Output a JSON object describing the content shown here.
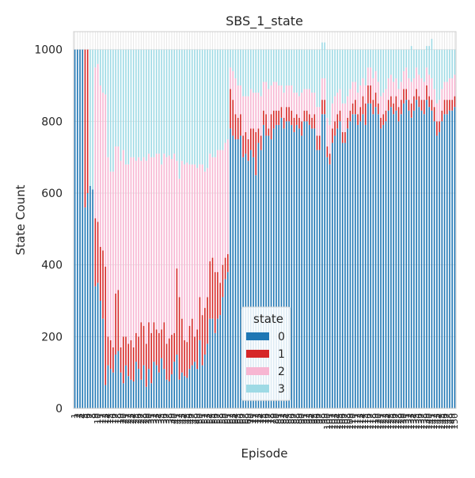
{
  "chart_data": {
    "type": "bar",
    "stacked": true,
    "title": "SBS_1_state",
    "xlabel": "Episode",
    "ylabel": "State Count",
    "ylim": [
      0,
      1050
    ],
    "yticks": [
      0,
      200,
      400,
      600,
      800,
      1000
    ],
    "grid": true,
    "legend": {
      "title": "state",
      "placement": "lower-center"
    },
    "episode_start": 1,
    "episode_end": 150,
    "x_tick_text": [
      "1",
      "2",
      "3",
      "4",
      "5",
      "6",
      "7",
      "8",
      "9",
      "10",
      "11",
      "12",
      "13",
      "14",
      "15",
      "16",
      "17",
      "18",
      "19",
      "20",
      "21",
      "22",
      "23",
      "24",
      "25",
      "26",
      "27",
      "28",
      "29",
      "30",
      "31",
      "32",
      "33",
      "34",
      "35",
      "36",
      "37",
      "38",
      "39",
      "40",
      "41",
      "42",
      "43",
      "44",
      "45",
      "46",
      "47",
      "48",
      "49",
      "50",
      "51",
      "52",
      "53",
      "54",
      "55",
      "56",
      "57",
      "58",
      "59",
      "60",
      "61",
      "62",
      "63",
      "64",
      "65",
      "66",
      "67",
      "68",
      "69",
      "70",
      "71",
      "72",
      "73",
      "74",
      "75",
      "76",
      "77",
      "78",
      "79",
      "80",
      "81",
      "82",
      "83",
      "84",
      "85",
      "86",
      "87",
      "88",
      "89",
      "90",
      "91",
      "92",
      "93",
      "94",
      "95",
      "96",
      "97",
      "98",
      "99",
      "100",
      "101",
      "102",
      "103",
      "104",
      "105",
      "106",
      "107",
      "108",
      "109",
      "110",
      "111",
      "112",
      "113",
      "114",
      "115",
      "116",
      "117",
      "118",
      "119",
      "120",
      "121",
      "122",
      "123",
      "124",
      "125",
      "126",
      "127",
      "128",
      "129",
      "130",
      "131",
      "132",
      "133",
      "134",
      "135",
      "136",
      "137",
      "138",
      "139",
      "140",
      "141",
      "142",
      "143",
      "144",
      "145",
      "146",
      "147",
      "148",
      "149",
      "150"
    ],
    "series": [
      {
        "name": "0",
        "color": "#1f77b4",
        "values": [
          1000,
          1000,
          1000,
          1000,
          560,
          600,
          620,
          610,
          340,
          350,
          300,
          250,
          65,
          120,
          110,
          100,
          150,
          160,
          100,
          70,
          120,
          90,
          80,
          75,
          130,
          110,
          80,
          120,
          60,
          110,
          70,
          130,
          120,
          100,
          140,
          110,
          80,
          75,
          95,
          130,
          150,
          80,
          100,
          90,
          85,
          110,
          120,
          130,
          110,
          190,
          120,
          150,
          180,
          250,
          250,
          210,
          250,
          260,
          310,
          360,
          380,
          780,
          760,
          750,
          750,
          760,
          700,
          710,
          690,
          720,
          700,
          650,
          740,
          720,
          790,
          760,
          760,
          750,
          780,
          790,
          790,
          810,
          780,
          800,
          800,
          790,
          770,
          790,
          780,
          760,
          800,
          800,
          790,
          780,
          780,
          720,
          720,
          820,
          820,
          700,
          680,
          740,
          760,
          780,
          800,
          740,
          740,
          780,
          800,
          820,
          820,
          790,
          800,
          820,
          790,
          850,
          850,
          820,
          840,
          820,
          780,
          790,
          800,
          830,
          840,
          820,
          830,
          800,
          820,
          850,
          860,
          830,
          810,
          830,
          860,
          840,
          830,
          820,
          860,
          840,
          830,
          800,
          760,
          770,
          800,
          820,
          820,
          830,
          830,
          840
        ]
      },
      {
        "name": "1",
        "color": "#d62728",
        "values": [
          0,
          0,
          0,
          0,
          440,
          400,
          0,
          0,
          190,
          170,
          150,
          190,
          330,
          80,
          80,
          70,
          170,
          170,
          70,
          130,
          80,
          90,
          110,
          95,
          80,
          90,
          160,
          110,
          120,
          130,
          140,
          110,
          100,
          110,
          80,
          130,
          100,
          120,
          110,
          80,
          240,
          230,
          150,
          100,
          100,
          120,
          130,
          70,
          110,
          120,
          140,
          130,
          130,
          160,
          170,
          170,
          130,
          90,
          90,
          60,
          50,
          110,
          100,
          70,
          60,
          60,
          60,
          60,
          60,
          60,
          80,
          120,
          40,
          40,
          40,
          60,
          20,
          70,
          50,
          40,
          40,
          30,
          30,
          40,
          40,
          40,
          40,
          30,
          30,
          40,
          30,
          30,
          30,
          30,
          40,
          40,
          40,
          40,
          40,
          30,
          30,
          40,
          40,
          40,
          30,
          30,
          30,
          30,
          30,
          30,
          40,
          30,
          40,
          50,
          60,
          50,
          50,
          40,
          40,
          30,
          30,
          30,
          30,
          30,
          30,
          30,
          40,
          40,
          40,
          40,
          30,
          30,
          40,
          40,
          30,
          30,
          30,
          40,
          40,
          30,
          30,
          40,
          40,
          30,
          30,
          40,
          40,
          30,
          30,
          30
        ]
      },
      {
        "name": "2",
        "color": "#f7b6d2",
        "values": [
          0,
          0,
          0,
          0,
          0,
          0,
          0,
          0,
          420,
          440,
          450,
          440,
          480,
          500,
          470,
          490,
          410,
          400,
          520,
          520,
          480,
          500,
          510,
          530,
          480,
          500,
          450,
          470,
          510,
          470,
          490,
          460,
          490,
          500,
          460,
          470,
          520,
          510,
          490,
          500,
          300,
          330,
          440,
          490,
          500,
          450,
          430,
          480,
          450,
          370,
          420,
          380,
          360,
          300,
          280,
          320,
          340,
          370,
          320,
          320,
          320,
          60,
          80,
          100,
          90,
          80,
          110,
          100,
          120,
          110,
          100,
          110,
          100,
          110,
          80,
          90,
          110,
          80,
          80,
          80,
          70,
          60,
          70,
          60,
          60,
          70,
          70,
          60,
          60,
          80,
          60,
          60,
          70,
          70,
          60,
          80,
          80,
          60,
          60,
          80,
          80,
          70,
          70,
          60,
          60,
          80,
          80,
          60,
          60,
          60,
          50,
          60,
          60,
          50,
          50,
          50,
          50,
          60,
          60,
          60,
          60,
          60,
          60,
          60,
          60,
          60,
          50,
          50,
          50,
          50,
          60,
          60,
          60,
          50,
          60,
          60,
          60,
          50,
          50,
          60,
          60,
          50,
          50,
          60,
          60,
          50,
          50,
          60,
          60,
          60
        ]
      },
      {
        "name": "3",
        "color": "#9edae5",
        "values": [
          0,
          0,
          0,
          0,
          0,
          0,
          380,
          390,
          50,
          40,
          100,
          120,
          125,
          300,
          340,
          340,
          270,
          270,
          310,
          280,
          320,
          320,
          300,
          300,
          310,
          300,
          310,
          300,
          310,
          290,
          300,
          300,
          290,
          290,
          320,
          290,
          300,
          295,
          305,
          290,
          310,
          360,
          310,
          320,
          315,
          320,
          320,
          320,
          330,
          320,
          320,
          340,
          330,
          290,
          300,
          300,
          280,
          280,
          280,
          260,
          250,
          50,
          60,
          80,
          100,
          100,
          130,
          130,
          130,
          110,
          120,
          120,
          120,
          130,
          90,
          90,
          110,
          100,
          90,
          90,
          100,
          100,
          120,
          100,
          100,
          100,
          120,
          120,
          130,
          120,
          110,
          110,
          110,
          120,
          120,
          160,
          160,
          100,
          100,
          190,
          210,
          150,
          130,
          120,
          110,
          150,
          150,
          130,
          110,
          90,
          90,
          120,
          100,
          80,
          100,
          50,
          50,
          80,
          60,
          90,
          130,
          120,
          110,
          80,
          70,
          90,
          80,
          110,
          90,
          60,
          50,
          80,
          100,
          80,
          50,
          70,
          80,
          90,
          60,
          80,
          110,
          110,
          150,
          140,
          110,
          90,
          90,
          80,
          80,
          70
        ]
      }
    ]
  }
}
